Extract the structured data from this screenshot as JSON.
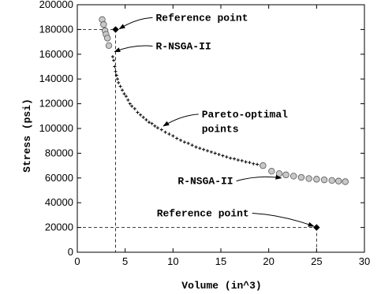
{
  "chart_data": {
    "type": "scatter",
    "title": "",
    "xlabel": "Volume (in^3)",
    "ylabel": "Stress (psi)",
    "xlim": [
      0,
      30
    ],
    "ylim": [
      0,
      200000
    ],
    "xticks": [
      0,
      5,
      10,
      15,
      20,
      25,
      30
    ],
    "yticks": [
      0,
      20000,
      40000,
      60000,
      80000,
      100000,
      120000,
      140000,
      160000,
      180000,
      200000
    ],
    "grid": false,
    "series": [
      {
        "name": "Pareto-optimal points",
        "marker": "plus",
        "color": "#000000",
        "x": [
          3.7,
          3.8,
          3.9,
          4.0,
          4.1,
          4.2,
          4.3,
          4.5,
          4.7,
          4.9,
          5.1,
          5.3,
          5.5,
          5.7,
          6.0,
          6.3,
          6.6,
          6.9,
          7.2,
          7.5,
          7.8,
          8.1,
          8.4,
          8.8,
          9.2,
          9.6,
          10.0,
          10.4,
          10.8,
          11.2,
          11.6,
          12.0,
          12.4,
          12.8,
          13.2,
          13.6,
          14.0,
          14.4,
          14.8,
          15.2,
          15.6,
          16.0,
          16.4,
          16.8,
          17.2,
          17.6,
          18.0,
          18.4,
          18.8,
          19.2
        ],
        "y": [
          158000,
          155000,
          150000,
          146000,
          143000,
          140000,
          137000,
          134000,
          131000,
          128000,
          126000,
          123000,
          120000,
          118000,
          116000,
          113000,
          111000,
          109000,
          107000,
          105000,
          104000,
          102000,
          100500,
          99000,
          97000,
          95500,
          94000,
          92000,
          90500,
          89000,
          88000,
          86500,
          85000,
          84000,
          83000,
          82000,
          81000,
          80000,
          79000,
          78000,
          77000,
          76000,
          75500,
          74500,
          74000,
          73000,
          72500,
          71500,
          71000,
          70000
        ]
      },
      {
        "name": "R-NSGA-II",
        "marker": "circle",
        "color": "#c8c8c8",
        "x": [
          2.6,
          2.75,
          2.9,
          3.0,
          3.15,
          3.3
        ],
        "y": [
          188000,
          184000,
          179000,
          176000,
          173000,
          167000
        ]
      },
      {
        "name": "R-NSGA-II",
        "marker": "circle",
        "color": "#c8c8c8",
        "x": [
          19.4,
          20.3,
          21.1,
          21.8,
          22.6,
          23.4,
          24.2,
          25.0,
          25.8,
          26.6,
          27.3,
          28.0
        ],
        "y": [
          70000,
          65500,
          63500,
          62500,
          61500,
          60500,
          59500,
          59000,
          58500,
          58000,
          57500,
          57000
        ]
      },
      {
        "name": "Reference point",
        "marker": "diamond",
        "color": "#000000",
        "x": [
          4.0,
          25.0
        ],
        "y": [
          180000,
          20000
        ]
      }
    ],
    "annotations": [
      {
        "text": "Reference point",
        "x": 8.2,
        "y": 187000,
        "arrow_to": [
          4.4,
          180500
        ]
      },
      {
        "text": "R-NSGA-II",
        "x": 8.2,
        "y": 164000,
        "arrow_to": [
          3.9,
          162000
        ]
      },
      {
        "text": "Pareto-optimal",
        "x": 13.0,
        "y": 109000,
        "arrow_to": [
          9.0,
          102000
        ]
      },
      {
        "text": "points",
        "x": 13.0,
        "y": 97000,
        "arrow_to": null
      },
      {
        "text": "R-NSGA-II",
        "x": 10.5,
        "y": 55000,
        "arrow_to": [
          21.3,
          60000
        ]
      },
      {
        "text": "Reference point",
        "x": 8.3,
        "y": 29000,
        "arrow_to": [
          24.7,
          21000
        ]
      }
    ]
  }
}
